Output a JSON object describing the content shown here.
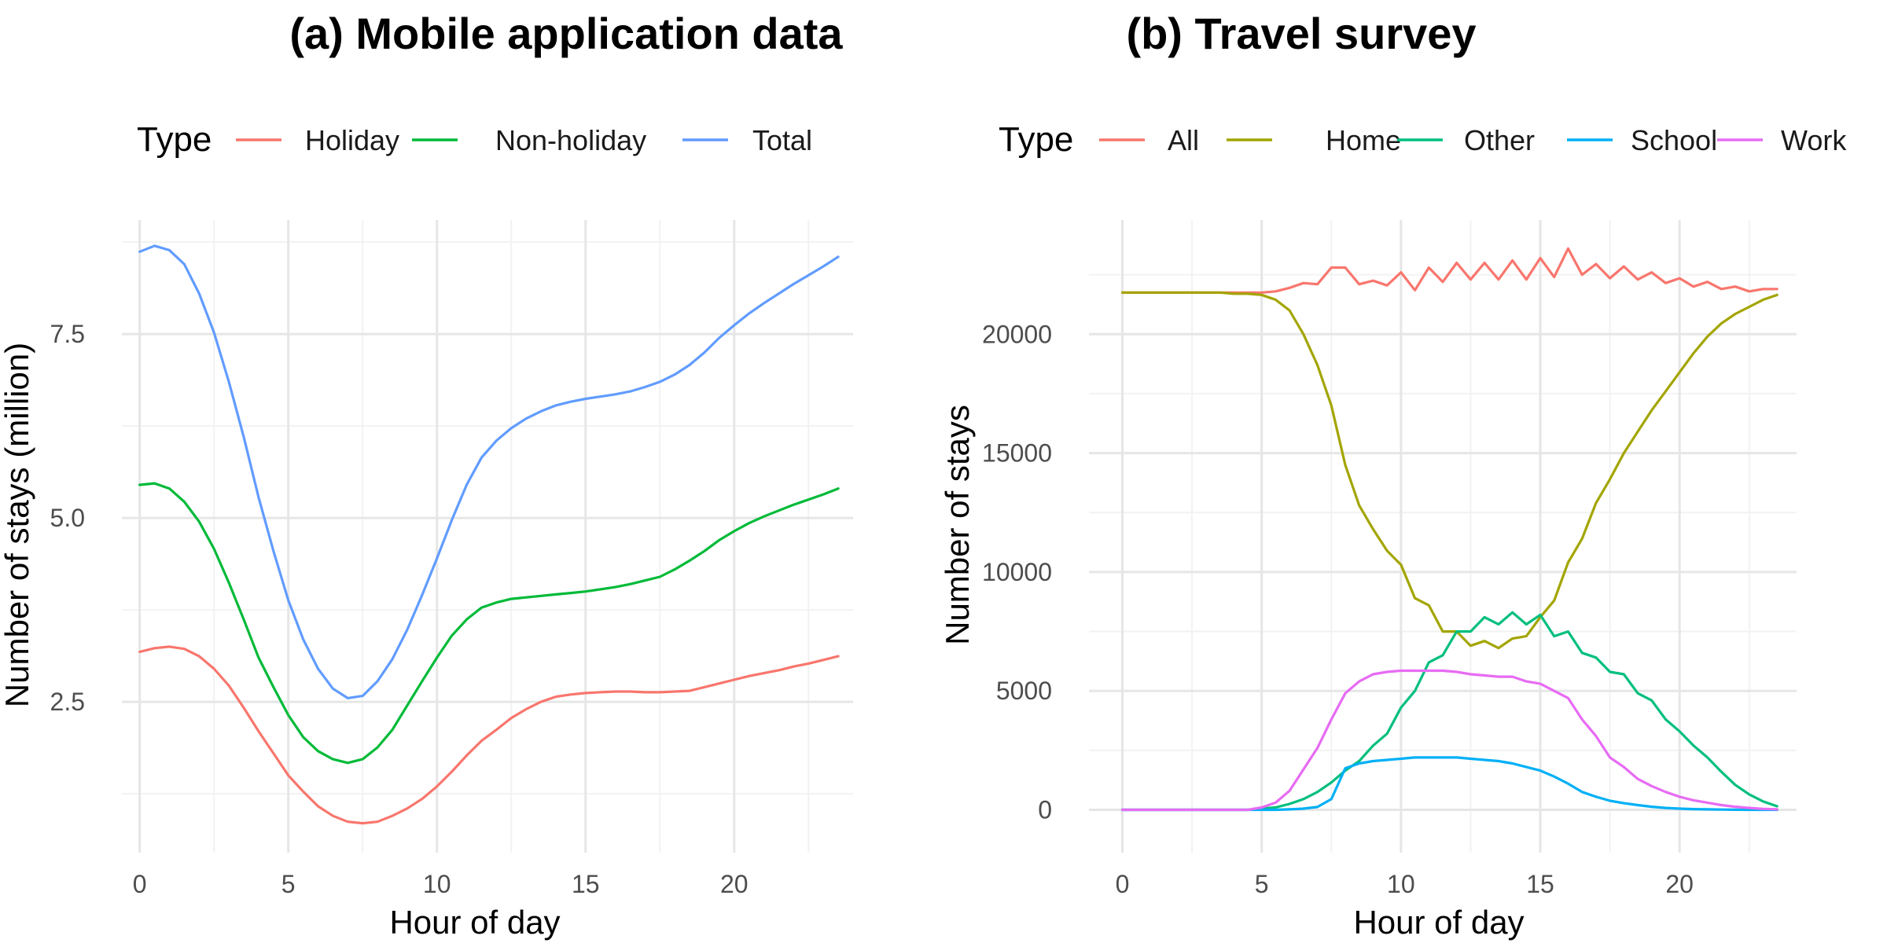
{
  "chart_data": [
    {
      "type": "line",
      "title": "(a) Mobile application data",
      "xlabel": "Hour of day",
      "ylabel": "Number of stays (million)",
      "legend_title": "Type",
      "legend_position": "top",
      "xlim": [
        -0.6,
        24.0
      ],
      "ylim": [
        0.45,
        9.05
      ],
      "xticks": [
        0,
        5,
        10,
        15,
        20
      ],
      "yticks": [
        2.5,
        5.0,
        7.5
      ],
      "ytick_labels": [
        "2.5",
        "5.0",
        "7.5"
      ],
      "x": [
        0,
        0.5,
        1,
        1.5,
        2,
        2.5,
        3,
        3.5,
        4,
        4.5,
        5,
        5.5,
        6,
        6.5,
        7,
        7.5,
        8,
        8.5,
        9,
        9.5,
        10,
        10.5,
        11,
        11.5,
        12,
        12.5,
        13,
        13.5,
        14,
        14.5,
        15,
        15.5,
        16,
        16.5,
        17,
        17.5,
        18,
        18.5,
        19,
        19.5,
        20,
        20.5,
        21,
        21.5,
        22,
        22.5,
        23,
        23.5
      ],
      "series": [
        {
          "name": "Holiday",
          "color": "#F8766D",
          "values": [
            3.18,
            3.23,
            3.25,
            3.22,
            3.12,
            2.95,
            2.72,
            2.42,
            2.1,
            1.8,
            1.5,
            1.28,
            1.08,
            0.95,
            0.87,
            0.85,
            0.87,
            0.95,
            1.05,
            1.18,
            1.35,
            1.55,
            1.77,
            1.97,
            2.12,
            2.28,
            2.4,
            2.5,
            2.57,
            2.6,
            2.62,
            2.63,
            2.64,
            2.64,
            2.63,
            2.63,
            2.64,
            2.65,
            2.7,
            2.75,
            2.8,
            2.85,
            2.89,
            2.93,
            2.98,
            3.02,
            3.07,
            3.12
          ]
        },
        {
          "name": "Non-holiday",
          "color": "#00BA38",
          "values": [
            5.45,
            5.47,
            5.4,
            5.22,
            4.95,
            4.58,
            4.12,
            3.62,
            3.1,
            2.7,
            2.32,
            2.02,
            1.83,
            1.72,
            1.67,
            1.72,
            1.88,
            2.12,
            2.45,
            2.78,
            3.1,
            3.4,
            3.62,
            3.78,
            3.85,
            3.9,
            3.92,
            3.94,
            3.96,
            3.98,
            4.0,
            4.03,
            4.06,
            4.1,
            4.15,
            4.2,
            4.3,
            4.42,
            4.55,
            4.7,
            4.82,
            4.93,
            5.02,
            5.1,
            5.18,
            5.25,
            5.32,
            5.4
          ]
        },
        {
          "name": "Total",
          "color": "#619CFF",
          "values": [
            8.62,
            8.7,
            8.64,
            8.45,
            8.05,
            7.52,
            6.85,
            6.1,
            5.28,
            4.55,
            3.88,
            3.35,
            2.95,
            2.68,
            2.55,
            2.58,
            2.78,
            3.08,
            3.48,
            3.95,
            4.45,
            4.97,
            5.45,
            5.82,
            6.05,
            6.22,
            6.35,
            6.45,
            6.53,
            6.58,
            6.62,
            6.65,
            6.68,
            6.72,
            6.78,
            6.85,
            6.95,
            7.08,
            7.25,
            7.45,
            7.62,
            7.78,
            7.92,
            8.05,
            8.18,
            8.3,
            8.42,
            8.55
          ]
        }
      ]
    },
    {
      "type": "line",
      "title": "(b) Travel survey",
      "xlabel": "Hour of day",
      "ylabel": "Number of stays",
      "legend_title": "Type",
      "legend_position": "top",
      "xlim": [
        -1.2,
        24.2
      ],
      "ylim": [
        -1800,
        24800
      ],
      "xticks": [
        0,
        5,
        10,
        15,
        20
      ],
      "yticks": [
        0,
        5000,
        10000,
        15000,
        20000
      ],
      "ytick_labels": [
        "0",
        "5000",
        "10000",
        "15000",
        "20000"
      ],
      "x": [
        0,
        0.5,
        1,
        1.5,
        2,
        2.5,
        3,
        3.5,
        4,
        4.5,
        5,
        5.5,
        6,
        6.5,
        7,
        7.5,
        8,
        8.5,
        9,
        9.5,
        10,
        10.5,
        11,
        11.5,
        12,
        12.5,
        13,
        13.5,
        14,
        14.5,
        15,
        15.5,
        16,
        16.5,
        17,
        17.5,
        18,
        18.5,
        19,
        19.5,
        20,
        20.5,
        21,
        21.5,
        22,
        22.5,
        23,
        23.5
      ],
      "series": [
        {
          "name": "All",
          "color": "#F8766D",
          "values": [
            21750,
            21750,
            21750,
            21750,
            21750,
            21750,
            21750,
            21750,
            21750,
            21750,
            21750,
            21800,
            21950,
            22150,
            22100,
            22800,
            22800,
            22100,
            22250,
            22050,
            22600,
            21850,
            22800,
            22200,
            23000,
            22300,
            23000,
            22300,
            23100,
            22300,
            23200,
            22400,
            23600,
            22500,
            22950,
            22350,
            22850,
            22300,
            22600,
            22150,
            22350,
            22000,
            22200,
            21900,
            22000,
            21800,
            21900,
            21900
          ]
        },
        {
          "name": "Home",
          "color": "#A3A500",
          "values": [
            21750,
            21750,
            21750,
            21750,
            21750,
            21750,
            21750,
            21750,
            21700,
            21700,
            21650,
            21450,
            21000,
            20000,
            18700,
            17000,
            14500,
            12800,
            11800,
            10900,
            10300,
            8900,
            8600,
            7500,
            7500,
            6900,
            7100,
            6800,
            7200,
            7300,
            8100,
            8800,
            10400,
            11400,
            12900,
            13900,
            15000,
            15900,
            16800,
            17600,
            18400,
            19200,
            19900,
            20450,
            20850,
            21150,
            21450,
            21650
          ]
        },
        {
          "name": "Other",
          "color": "#00BF7D",
          "values": [
            0,
            0,
            0,
            0,
            0,
            0,
            0,
            0,
            0,
            0,
            50,
            100,
            250,
            450,
            750,
            1150,
            1650,
            2050,
            2700,
            3200,
            4300,
            5000,
            6200,
            6500,
            7500,
            7500,
            8100,
            7800,
            8300,
            7800,
            8200,
            7300,
            7500,
            6600,
            6400,
            5800,
            5700,
            4900,
            4600,
            3800,
            3300,
            2700,
            2200,
            1600,
            1050,
            650,
            350,
            150
          ]
        },
        {
          "name": "School",
          "color": "#00B0F6",
          "values": [
            0,
            0,
            0,
            0,
            0,
            0,
            0,
            0,
            0,
            0,
            0,
            0,
            20,
            50,
            120,
            450,
            1750,
            1950,
            2050,
            2100,
            2150,
            2200,
            2200,
            2200,
            2200,
            2150,
            2100,
            2050,
            1950,
            1800,
            1650,
            1400,
            1100,
            750,
            550,
            380,
            280,
            200,
            130,
            80,
            50,
            30,
            20,
            10,
            5,
            0,
            0,
            0
          ]
        },
        {
          "name": "Work",
          "color": "#E76BF3",
          "values": [
            0,
            0,
            0,
            0,
            0,
            0,
            0,
            0,
            0,
            0,
            100,
            300,
            800,
            1700,
            2600,
            3800,
            4900,
            5400,
            5700,
            5800,
            5850,
            5850,
            5850,
            5850,
            5800,
            5700,
            5650,
            5600,
            5600,
            5400,
            5300,
            5000,
            4700,
            3800,
            3100,
            2200,
            1800,
            1300,
            1000,
            750,
            550,
            400,
            300,
            200,
            130,
            80,
            40,
            20
          ]
        }
      ]
    }
  ]
}
